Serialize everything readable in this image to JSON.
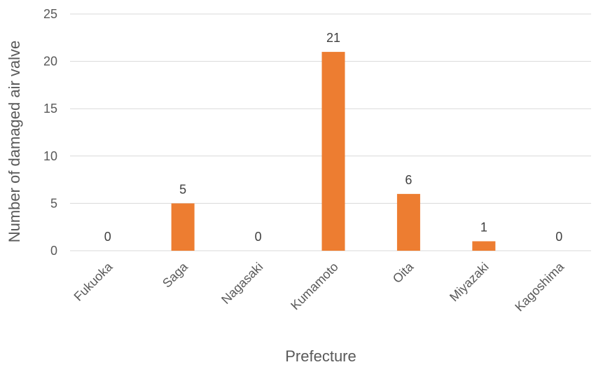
{
  "chart_data": {
    "type": "bar",
    "categories": [
      "Fukuoka",
      "Saga",
      "Nagasaki",
      "Kumamoto",
      "Oita",
      "Miyazaki",
      "Kagoshima"
    ],
    "values": [
      0,
      5,
      0,
      21,
      6,
      1,
      0
    ],
    "xlabel": "Prefecture",
    "ylabel": "Number of damaged air valve",
    "ylim": [
      0,
      25
    ],
    "yticks": [
      0,
      5,
      10,
      15,
      20,
      25
    ],
    "grid": true,
    "data_labels": true,
    "bar_color": "#ED7D31"
  }
}
